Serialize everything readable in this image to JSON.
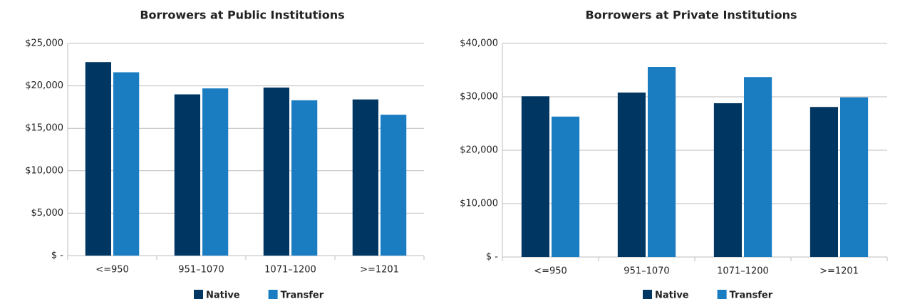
{
  "chart_data": [
    {
      "type": "bar",
      "title": "Borrowers at Public Institutions",
      "categories": [
        "<=950",
        "951–1070",
        "1071–1200",
        ">=1201"
      ],
      "series": [
        {
          "name": "Native",
          "color": "#003662",
          "values": [
            22800,
            19000,
            19800,
            18400
          ]
        },
        {
          "name": "Transfer",
          "color": "#1a7cc1",
          "values": [
            21600,
            19700,
            18300,
            16600
          ]
        }
      ],
      "ylim": [
        0,
        25000
      ],
      "yticks": [
        {
          "value": 0,
          "label": "$ -"
        },
        {
          "value": 5000,
          "label": "$5,000"
        },
        {
          "value": 10000,
          "label": "$10,000"
        },
        {
          "value": 15000,
          "label": "$15,000"
        },
        {
          "value": 20000,
          "label": "$20,000"
        },
        {
          "value": 25000,
          "label": "$25,000"
        }
      ],
      "grid": true,
      "legend": "bottom"
    },
    {
      "type": "bar",
      "title": "Borrowers at Private Institutions",
      "categories": [
        "<=950",
        "951–1070",
        "1071–1200",
        ">=1201"
      ],
      "series": [
        {
          "name": "Native",
          "color": "#003662",
          "values": [
            30100,
            30800,
            28800,
            28100
          ]
        },
        {
          "name": "Transfer",
          "color": "#1a7cc1",
          "values": [
            26300,
            35600,
            33700,
            29900
          ]
        }
      ],
      "ylim": [
        0,
        40000
      ],
      "yticks": [
        {
          "value": 0,
          "label": "$ -"
        },
        {
          "value": 10000,
          "label": "$10,000"
        },
        {
          "value": 20000,
          "label": "$20,000"
        },
        {
          "value": 30000,
          "label": "$30,000"
        },
        {
          "value": 40000,
          "label": "$40,000"
        }
      ],
      "grid": true,
      "legend": "bottom"
    }
  ]
}
